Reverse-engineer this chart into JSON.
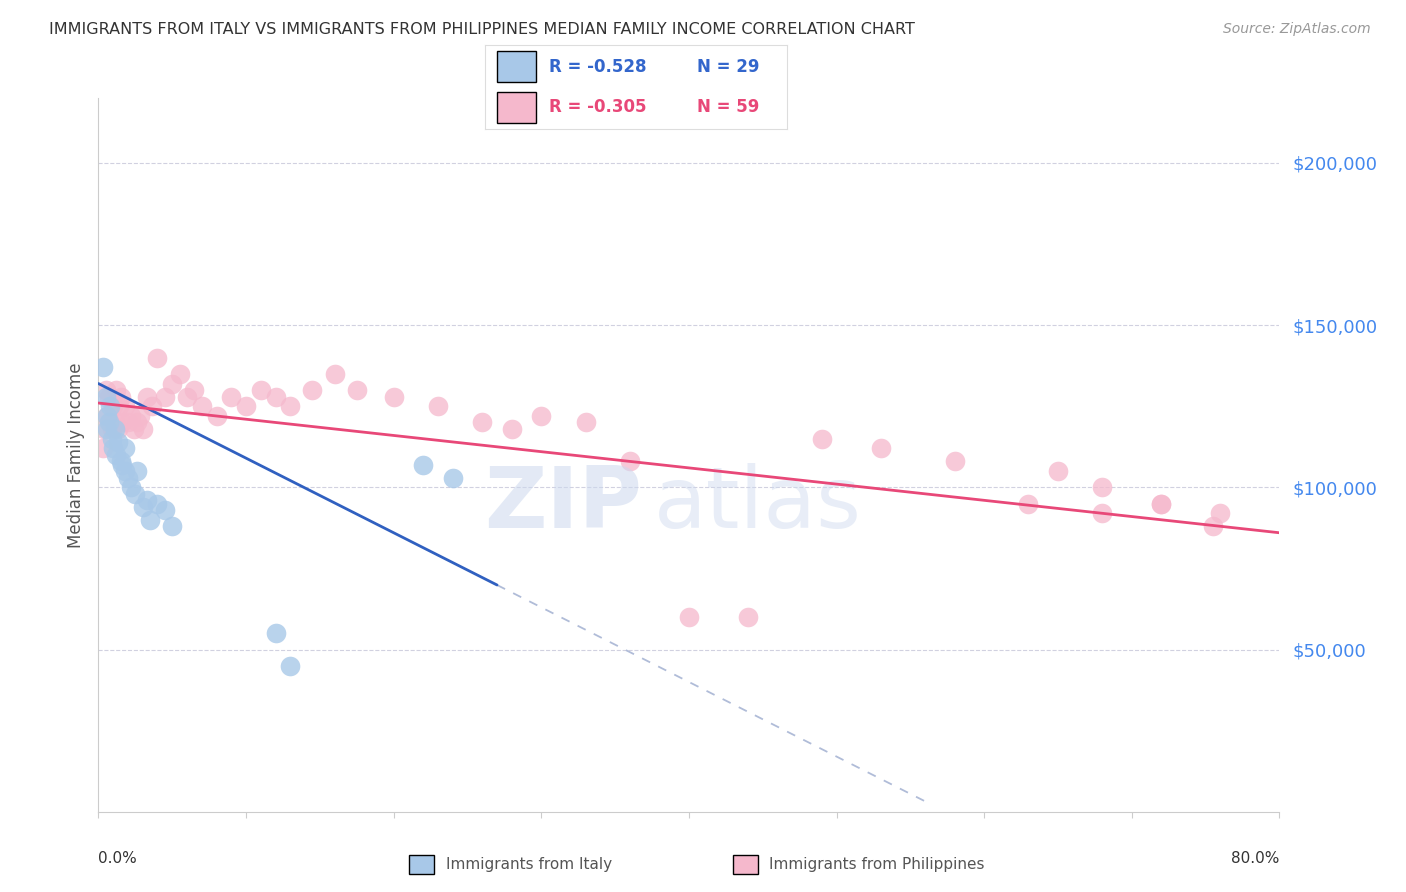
{
  "title": "IMMIGRANTS FROM ITALY VS IMMIGRANTS FROM PHILIPPINES MEDIAN FAMILY INCOME CORRELATION CHART",
  "source": "Source: ZipAtlas.com",
  "ylabel": "Median Family Income",
  "ytick_labels": [
    "$50,000",
    "$100,000",
    "$150,000",
    "$200,000"
  ],
  "ytick_values": [
    50000,
    100000,
    150000,
    200000
  ],
  "y_min": 0,
  "y_max": 220000,
  "x_min": 0.0,
  "x_max": 0.8,
  "legend_italy_R": "-0.528",
  "legend_italy_N": "29",
  "legend_phil_R": "-0.305",
  "legend_phil_N": "59",
  "italy_color": "#a8c8e8",
  "phil_color": "#f5b8cc",
  "italy_line_color": "#3060c0",
  "phil_line_color": "#e84878",
  "dashed_line_color": "#b0bcd8",
  "background_color": "#ffffff",
  "italy_x": [
    0.003,
    0.005,
    0.006,
    0.006,
    0.007,
    0.008,
    0.009,
    0.01,
    0.011,
    0.012,
    0.013,
    0.015,
    0.016,
    0.018,
    0.018,
    0.02,
    0.022,
    0.025,
    0.026,
    0.03,
    0.033,
    0.035,
    0.04,
    0.045,
    0.05,
    0.12,
    0.13,
    0.22,
    0.24
  ],
  "italy_y": [
    137000,
    128000,
    122000,
    118000,
    120000,
    125000,
    115000,
    112000,
    118000,
    110000,
    114000,
    108000,
    107000,
    112000,
    105000,
    103000,
    100000,
    98000,
    105000,
    94000,
    96000,
    90000,
    95000,
    93000,
    88000,
    55000,
    45000,
    107000,
    103000
  ],
  "phil_x": [
    0.003,
    0.004,
    0.005,
    0.006,
    0.007,
    0.008,
    0.009,
    0.01,
    0.011,
    0.012,
    0.013,
    0.014,
    0.015,
    0.016,
    0.018,
    0.02,
    0.022,
    0.024,
    0.026,
    0.028,
    0.03,
    0.033,
    0.036,
    0.04,
    0.045,
    0.05,
    0.055,
    0.06,
    0.065,
    0.07,
    0.08,
    0.09,
    0.1,
    0.11,
    0.12,
    0.13,
    0.145,
    0.16,
    0.175,
    0.2,
    0.23,
    0.26,
    0.28,
    0.3,
    0.33,
    0.36,
    0.4,
    0.44,
    0.49,
    0.53,
    0.58,
    0.63,
    0.68,
    0.72,
    0.755,
    0.76,
    0.72,
    0.68,
    0.65
  ],
  "phil_y": [
    112000,
    118000,
    130000,
    122000,
    128000,
    120000,
    118000,
    125000,
    120000,
    130000,
    118000,
    125000,
    128000,
    120000,
    125000,
    120000,
    122000,
    118000,
    120000,
    122000,
    118000,
    128000,
    125000,
    140000,
    128000,
    132000,
    135000,
    128000,
    130000,
    125000,
    122000,
    128000,
    125000,
    130000,
    128000,
    125000,
    130000,
    135000,
    130000,
    128000,
    125000,
    120000,
    118000,
    122000,
    120000,
    108000,
    60000,
    60000,
    115000,
    112000,
    108000,
    95000,
    92000,
    95000,
    88000,
    92000,
    95000,
    100000,
    105000
  ]
}
